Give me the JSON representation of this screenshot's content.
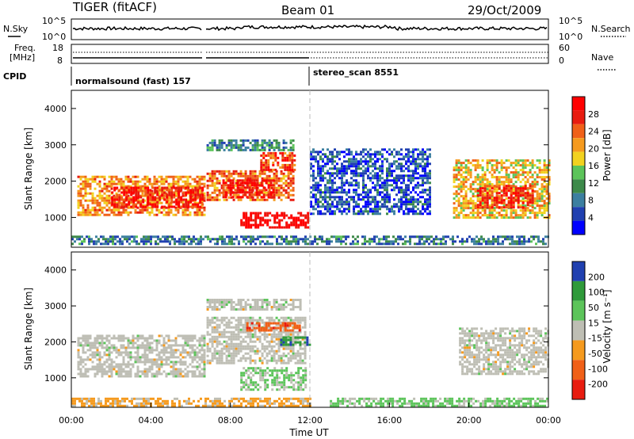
{
  "header": {
    "title_left": "TIGER (fitACF)",
    "title_center": "Beam 01",
    "title_right": "29/Oct/2009"
  },
  "side_labels": {
    "n_sky": "N.Sky",
    "n_search": "N.Search",
    "freq": "Freq.",
    "freq_unit": "[MHz]",
    "nave": "Nave",
    "cpid": "CPID"
  },
  "strip_ticks": {
    "noise_left": [
      "10^5",
      "10^0"
    ],
    "noise_right": [
      "10^5",
      "10^0"
    ],
    "freq_left": [
      "18",
      "8"
    ],
    "nave_right": [
      "60",
      "0"
    ]
  },
  "cpid_modes": [
    {
      "label": "normalsound (fast) 157",
      "start_hour": 0
    },
    {
      "label": "stereo_scan 8551",
      "start_hour": 12
    }
  ],
  "colorbars": {
    "power": {
      "label": "Power [dB]",
      "ticks": [
        "28",
        "24",
        "20",
        "16",
        "12",
        "8",
        "4"
      ]
    },
    "velocity": {
      "label": "Velocity [m s⁻¹]",
      "ticks": [
        "200",
        "100",
        "50",
        "15",
        "-15",
        "-50",
        "-100",
        "-200"
      ]
    }
  },
  "chart_data": [
    {
      "type": "heatmap",
      "title": "Power",
      "xlabel": "Time UT",
      "ylabel": "Slant Range [km]",
      "x_ticks": [
        "00:00",
        "04:00",
        "08:00",
        "12:00",
        "16:00",
        "20:00",
        "00:00"
      ],
      "y_ticks": [
        "1000",
        "2000",
        "3000",
        "4000"
      ],
      "xlim": [
        0,
        24
      ],
      "ylim": [
        180,
        4500
      ],
      "zlim": [
        0,
        30
      ],
      "color_scale": [
        "#0000ff",
        "#2040b0",
        "#3c7fa0",
        "#3d8a4a",
        "#5cc45a",
        "#f2d21f",
        "#f59a1e",
        "#f06018",
        "#e81c10",
        "#ff0000"
      ],
      "regions": [
        {
          "t": [
            0.3,
            6.7
          ],
          "range": [
            1100,
            2150
          ],
          "value": 20
        },
        {
          "t": [
            2.0,
            6.6
          ],
          "range": [
            1300,
            1850
          ],
          "value": 27
        },
        {
          "t": [
            6.8,
            11.2
          ],
          "range": [
            1450,
            2300
          ],
          "value": 22
        },
        {
          "t": [
            7.6,
            10.2
          ],
          "range": [
            1550,
            2050
          ],
          "value": 28
        },
        {
          "t": [
            8.5,
            11.9
          ],
          "range": [
            700,
            1150
          ],
          "value": 29
        },
        {
          "t": [
            9.5,
            11.2
          ],
          "range": [
            2300,
            2800
          ],
          "value": 24
        },
        {
          "t": [
            6.8,
            11.2
          ],
          "range": [
            2850,
            3150
          ],
          "value": 9
        },
        {
          "t": [
            12.0,
            18.0
          ],
          "range": [
            1100,
            2900
          ],
          "value": 5
        },
        {
          "t": [
            19.2,
            24.0
          ],
          "range": [
            1000,
            2600
          ],
          "value": 18
        },
        {
          "t": [
            20.4,
            23.2
          ],
          "range": [
            1300,
            1900
          ],
          "value": 26
        },
        {
          "t": [
            0.0,
            24.0
          ],
          "range": [
            250,
            500
          ],
          "value": 8
        }
      ]
    },
    {
      "type": "heatmap",
      "title": "Velocity",
      "xlabel": "Time UT",
      "ylabel": "Slant Range [km]",
      "x_ticks": [
        "00:00",
        "04:00",
        "08:00",
        "12:00",
        "16:00",
        "20:00",
        "00:00"
      ],
      "y_ticks": [
        "1000",
        "2000",
        "3000",
        "4000"
      ],
      "xlim": [
        0,
        24
      ],
      "ylim": [
        180,
        4500
      ],
      "zlim": [
        -250,
        250
      ],
      "color_scale": [
        "#e81c10",
        "#f06018",
        "#f59a1e",
        "#bebeb4",
        "#5cc45a",
        "#2f9a3a",
        "#2040b0"
      ],
      "regions": [
        {
          "t": [
            0.3,
            6.7
          ],
          "range": [
            1050,
            2200
          ],
          "value": 0
        },
        {
          "t": [
            6.8,
            11.8
          ],
          "range": [
            1400,
            2700
          ],
          "value": 0
        },
        {
          "t": [
            8.5,
            11.8
          ],
          "range": [
            700,
            1300
          ],
          "value": 40
        },
        {
          "t": [
            8.8,
            11.5
          ],
          "range": [
            2350,
            2550
          ],
          "value": -150
        },
        {
          "t": [
            10.5,
            12.0
          ],
          "range": [
            1950,
            2150
          ],
          "value": 180
        },
        {
          "t": [
            6.8,
            11.5
          ],
          "range": [
            2900,
            3200
          ],
          "value": 0
        },
        {
          "t": [
            19.5,
            24.0
          ],
          "range": [
            1100,
            2400
          ],
          "value": 0
        },
        {
          "t": [
            13.0,
            24.0
          ],
          "range": [
            200,
            450
          ],
          "value": 50
        },
        {
          "t": [
            0.0,
            12.0
          ],
          "range": [
            200,
            450
          ],
          "value": -60
        }
      ]
    }
  ]
}
